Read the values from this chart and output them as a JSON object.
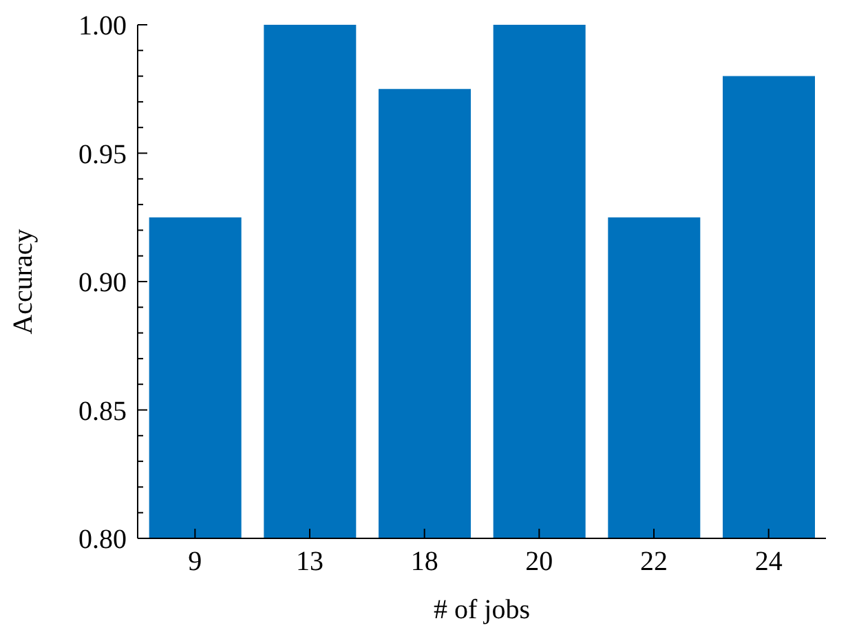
{
  "chart_data": {
    "type": "bar",
    "xlabel": "# of jobs",
    "ylabel": "Accuracy",
    "categories": [
      "9",
      "13",
      "18",
      "20",
      "22",
      "24"
    ],
    "values": [
      0.925,
      1.0,
      0.975,
      1.0,
      0.925,
      0.98
    ],
    "color": "#0072bd",
    "ylim": [
      0.8,
      1.0
    ],
    "yticks": [
      {
        "value": 0.8,
        "label": "0.80"
      },
      {
        "value": 0.81,
        "label": null
      },
      {
        "value": 0.82,
        "label": null
      },
      {
        "value": 0.83,
        "label": null
      },
      {
        "value": 0.84,
        "label": null
      },
      {
        "value": 0.85,
        "label": "0.85"
      },
      {
        "value": 0.86,
        "label": null
      },
      {
        "value": 0.87,
        "label": null
      },
      {
        "value": 0.88,
        "label": null
      },
      {
        "value": 0.89,
        "label": null
      },
      {
        "value": 0.9,
        "label": "0.90"
      },
      {
        "value": 0.91,
        "label": null
      },
      {
        "value": 0.92,
        "label": null
      },
      {
        "value": 0.93,
        "label": null
      },
      {
        "value": 0.94,
        "label": null
      },
      {
        "value": 0.95,
        "label": "0.95"
      },
      {
        "value": 0.96,
        "label": null
      },
      {
        "value": 0.97,
        "label": null
      },
      {
        "value": 0.98,
        "label": null
      },
      {
        "value": 0.99,
        "label": null
      },
      {
        "value": 1.0,
        "label": "1.00"
      }
    ],
    "grid": false,
    "legend": false
  }
}
